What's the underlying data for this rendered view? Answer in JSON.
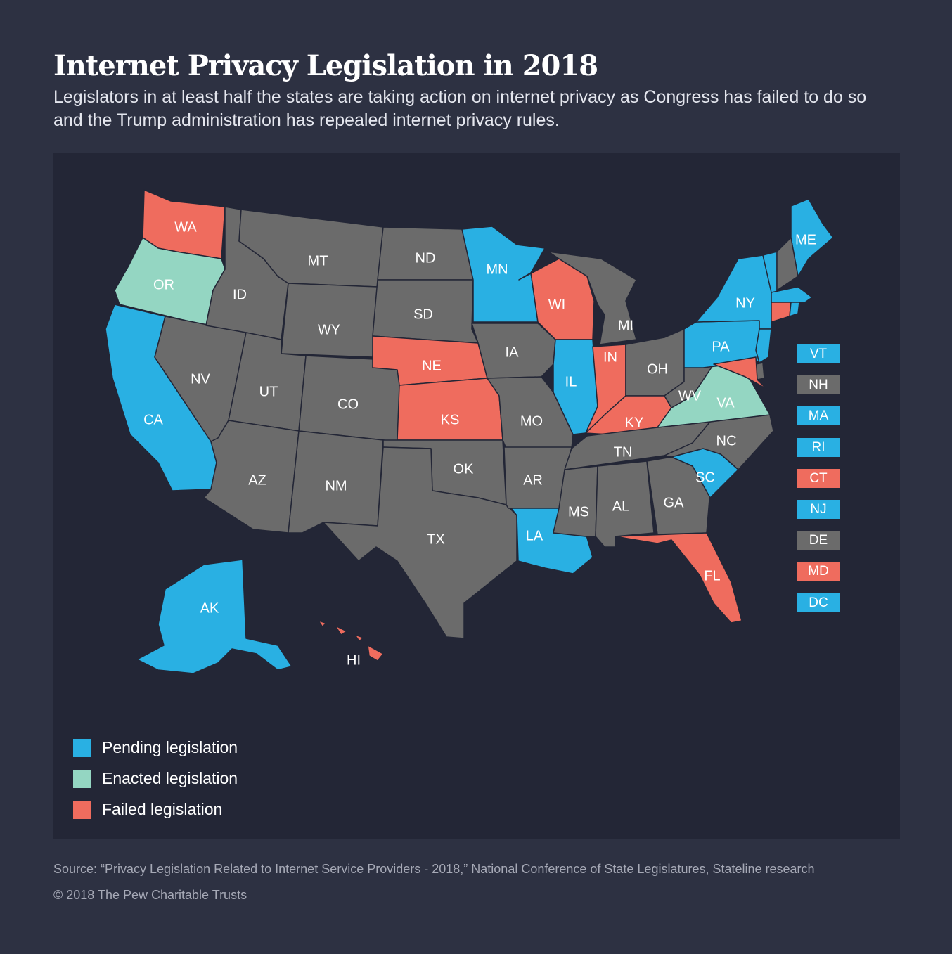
{
  "title": "Internet Privacy Legislation in 2018",
  "subtitle": "Legislators in at least half the states are taking action on internet privacy as Congress has failed to do so and the Trump administration has repealed internet privacy rules.",
  "colors": {
    "pending": "#29b0e3",
    "enacted": "#94d6c2",
    "failed": "#ef6c5e",
    "none": "#6b6b6b"
  },
  "legend": [
    {
      "status": "pending",
      "label": "Pending legislation"
    },
    {
      "status": "enacted",
      "label": "Enacted legislation"
    },
    {
      "status": "failed",
      "label": "Failed legislation"
    }
  ],
  "states": {
    "WA": "failed",
    "OR": "enacted",
    "CA": "pending",
    "NV": "none",
    "ID": "none",
    "MT": "none",
    "WY": "none",
    "UT": "none",
    "CO": "none",
    "AZ": "none",
    "NM": "none",
    "ND": "none",
    "SD": "none",
    "NE": "failed",
    "KS": "failed",
    "OK": "none",
    "TX": "none",
    "MN": "pending",
    "IA": "none",
    "MO": "none",
    "AR": "none",
    "LA": "pending",
    "WI": "failed",
    "IL": "pending",
    "MI": "none",
    "IN": "failed",
    "OH": "none",
    "KY": "failed",
    "TN": "none",
    "MS": "none",
    "AL": "none",
    "GA": "none",
    "FL": "failed",
    "SC": "pending",
    "NC": "none",
    "VA": "enacted",
    "WV": "none",
    "PA": "pending",
    "NY": "pending",
    "ME": "pending",
    "AK": "pending",
    "HI": "failed"
  },
  "side_states": [
    {
      "abbr": "VT",
      "status": "pending"
    },
    {
      "abbr": "NH",
      "status": "none"
    },
    {
      "abbr": "MA",
      "status": "pending"
    },
    {
      "abbr": "RI",
      "status": "pending"
    },
    {
      "abbr": "CT",
      "status": "failed"
    },
    {
      "abbr": "NJ",
      "status": "pending"
    },
    {
      "abbr": "DE",
      "status": "none"
    },
    {
      "abbr": "MD",
      "status": "failed"
    },
    {
      "abbr": "DC",
      "status": "pending"
    }
  ],
  "source": "Source: “Privacy Legislation Related to Internet Service Providers - 2018,” National Conference of State Legislatures, Stateline research",
  "copyright": "© 2018 The Pew Charitable Trusts"
}
